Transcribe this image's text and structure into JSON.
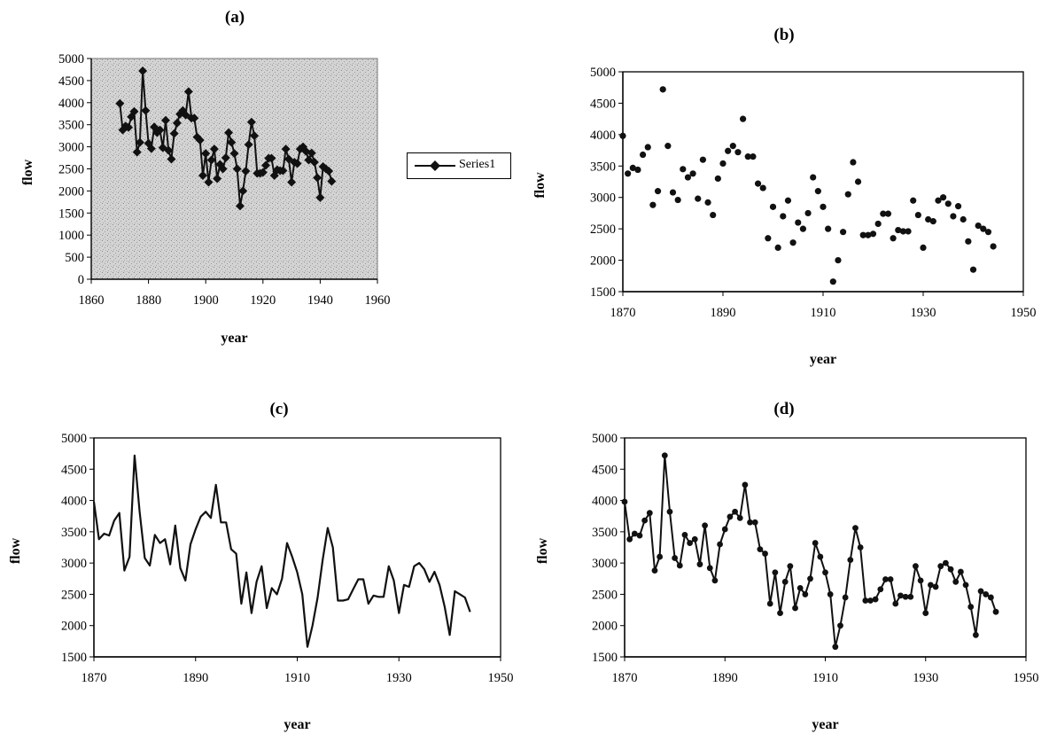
{
  "chart_data": [
    {
      "panel": "a",
      "type": "line",
      "title": "(a)",
      "xlabel": "year",
      "ylabel": "flow",
      "xlim": [
        1860,
        1960
      ],
      "ylim": [
        0,
        5000
      ],
      "xticks": [
        1860,
        1880,
        1900,
        1920,
        1940,
        1960
      ],
      "yticks": [
        0,
        500,
        1000,
        1500,
        2000,
        2500,
        3000,
        3500,
        4000,
        4500,
        5000
      ],
      "markers": true,
      "plot_background": "speckled grey",
      "legend": {
        "label": "Series1",
        "placement": "right"
      },
      "series": [
        {
          "name": "Series1",
          "ref": "flow"
        }
      ]
    },
    {
      "panel": "b",
      "type": "scatter",
      "title": "(b)",
      "xlabel": "year",
      "ylabel": "flow",
      "xlim": [
        1870,
        1950
      ],
      "ylim": [
        1500,
        5000
      ],
      "xticks": [
        1870,
        1890,
        1910,
        1930,
        1950
      ],
      "yticks": [
        1500,
        2000,
        2500,
        3000,
        3500,
        4000,
        4500,
        5000
      ],
      "series": [
        {
          "ref": "flow"
        }
      ]
    },
    {
      "panel": "c",
      "type": "line",
      "title": "(c)",
      "xlabel": "year",
      "ylabel": "flow",
      "xlim": [
        1870,
        1950
      ],
      "ylim": [
        1500,
        5000
      ],
      "xticks": [
        1870,
        1890,
        1910,
        1930,
        1950
      ],
      "yticks": [
        1500,
        2000,
        2500,
        3000,
        3500,
        4000,
        4500,
        5000
      ],
      "markers": false,
      "series": [
        {
          "ref": "flow"
        }
      ]
    },
    {
      "panel": "d",
      "type": "line",
      "title": "(d)",
      "xlabel": "year",
      "ylabel": "flow",
      "xlim": [
        1870,
        1950
      ],
      "ylim": [
        1500,
        5000
      ],
      "xticks": [
        1870,
        1890,
        1910,
        1930,
        1950
      ],
      "yticks": [
        1500,
        2000,
        2500,
        3000,
        3500,
        4000,
        4500,
        5000
      ],
      "markers": true,
      "series": [
        {
          "ref": "flow"
        }
      ]
    }
  ],
  "flow": {
    "x": [
      1870,
      1871,
      1872,
      1873,
      1874,
      1875,
      1876,
      1877,
      1878,
      1879,
      1880,
      1881,
      1882,
      1883,
      1884,
      1885,
      1886,
      1887,
      1888,
      1889,
      1890,
      1891,
      1892,
      1893,
      1894,
      1895,
      1896,
      1897,
      1898,
      1899,
      1900,
      1901,
      1902,
      1903,
      1904,
      1905,
      1906,
      1907,
      1908,
      1909,
      1910,
      1911,
      1912,
      1913,
      1914,
      1915,
      1916,
      1917,
      1918,
      1919,
      1920,
      1921,
      1922,
      1923,
      1924,
      1925,
      1926,
      1927,
      1928,
      1929,
      1930,
      1931,
      1932,
      1933,
      1934,
      1935,
      1936,
      1937,
      1938,
      1939,
      1940,
      1941,
      1942,
      1943,
      1944
    ],
    "y": [
      3980,
      3380,
      3470,
      3440,
      3680,
      3800,
      2880,
      3100,
      4720,
      3820,
      3080,
      2960,
      3450,
      3320,
      3380,
      2980,
      3600,
      2920,
      2720,
      3300,
      3540,
      3740,
      3820,
      3720,
      4250,
      3650,
      3650,
      3220,
      3150,
      2350,
      2850,
      2200,
      2700,
      2950,
      2280,
      2600,
      2500,
      2750,
      3320,
      3100,
      2850,
      2500,
      1660,
      2000,
      2450,
      3050,
      3560,
      3250,
      2400,
      2400,
      2420,
      2580,
      2740,
      2740,
      2350,
      2480,
      2460,
      2460,
      2950,
      2720,
      2200,
      2650,
      2620,
      2950,
      3000,
      2900,
      2700,
      2860,
      2650,
      2300,
      1850,
      2550,
      2500,
      2450,
      2220
    ]
  },
  "colors": {
    "line": "#111111",
    "marker": "#111111",
    "axis": "#000000",
    "speckle_background": "#d0d0d0"
  }
}
